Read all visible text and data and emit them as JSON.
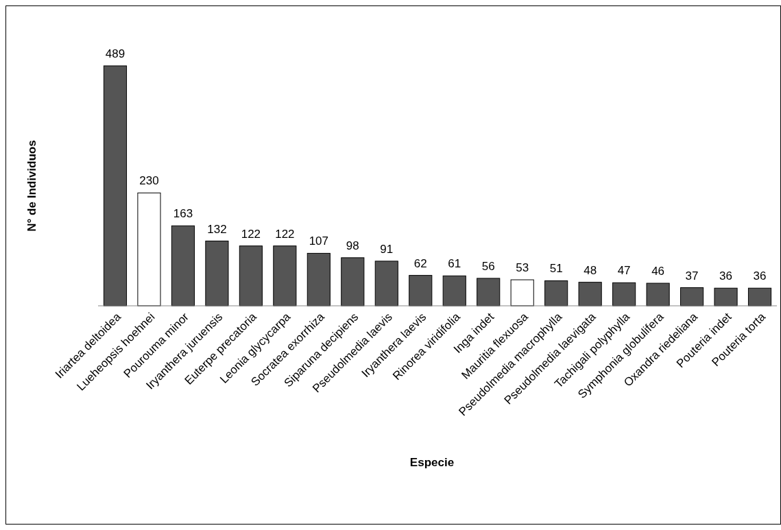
{
  "chart_data": {
    "type": "bar",
    "xlabel": "Especie",
    "ylabel": "N° de Individuos",
    "categories": [
      "Iriartea deltoidea",
      "Lueheopsis hoehnei",
      "Pourouma minor",
      "Iryanthera juruensis",
      "Euterpe precatoria",
      "Leonia glycycarpa",
      "Socratea exorrhiza",
      "Siparuna decipiens",
      "Pseudolmedia laevis",
      "Iryanthera laevis",
      "Rinorea viridifolia",
      "Inga indet",
      "Mauritia flexuosa",
      "Pseudolmedia macrophylla",
      "Pseudolmedia laevigata",
      "Tachigali polyphylla",
      "Symphonia globulifera",
      "Oxandra riedeliana",
      "Pouteria indet",
      "Pouteria torta"
    ],
    "values": [
      489,
      230,
      163,
      132,
      122,
      122,
      107,
      98,
      91,
      62,
      61,
      56,
      53,
      51,
      48,
      47,
      46,
      37,
      36,
      36
    ],
    "colors": [
      "#555555",
      "#ffffff",
      "#555555",
      "#555555",
      "#555555",
      "#555555",
      "#555555",
      "#555555",
      "#555555",
      "#555555",
      "#555555",
      "#555555",
      "#ffffff",
      "#555555",
      "#555555",
      "#555555",
      "#555555",
      "#555555",
      "#555555",
      "#555555"
    ],
    "data_labels": true
  }
}
